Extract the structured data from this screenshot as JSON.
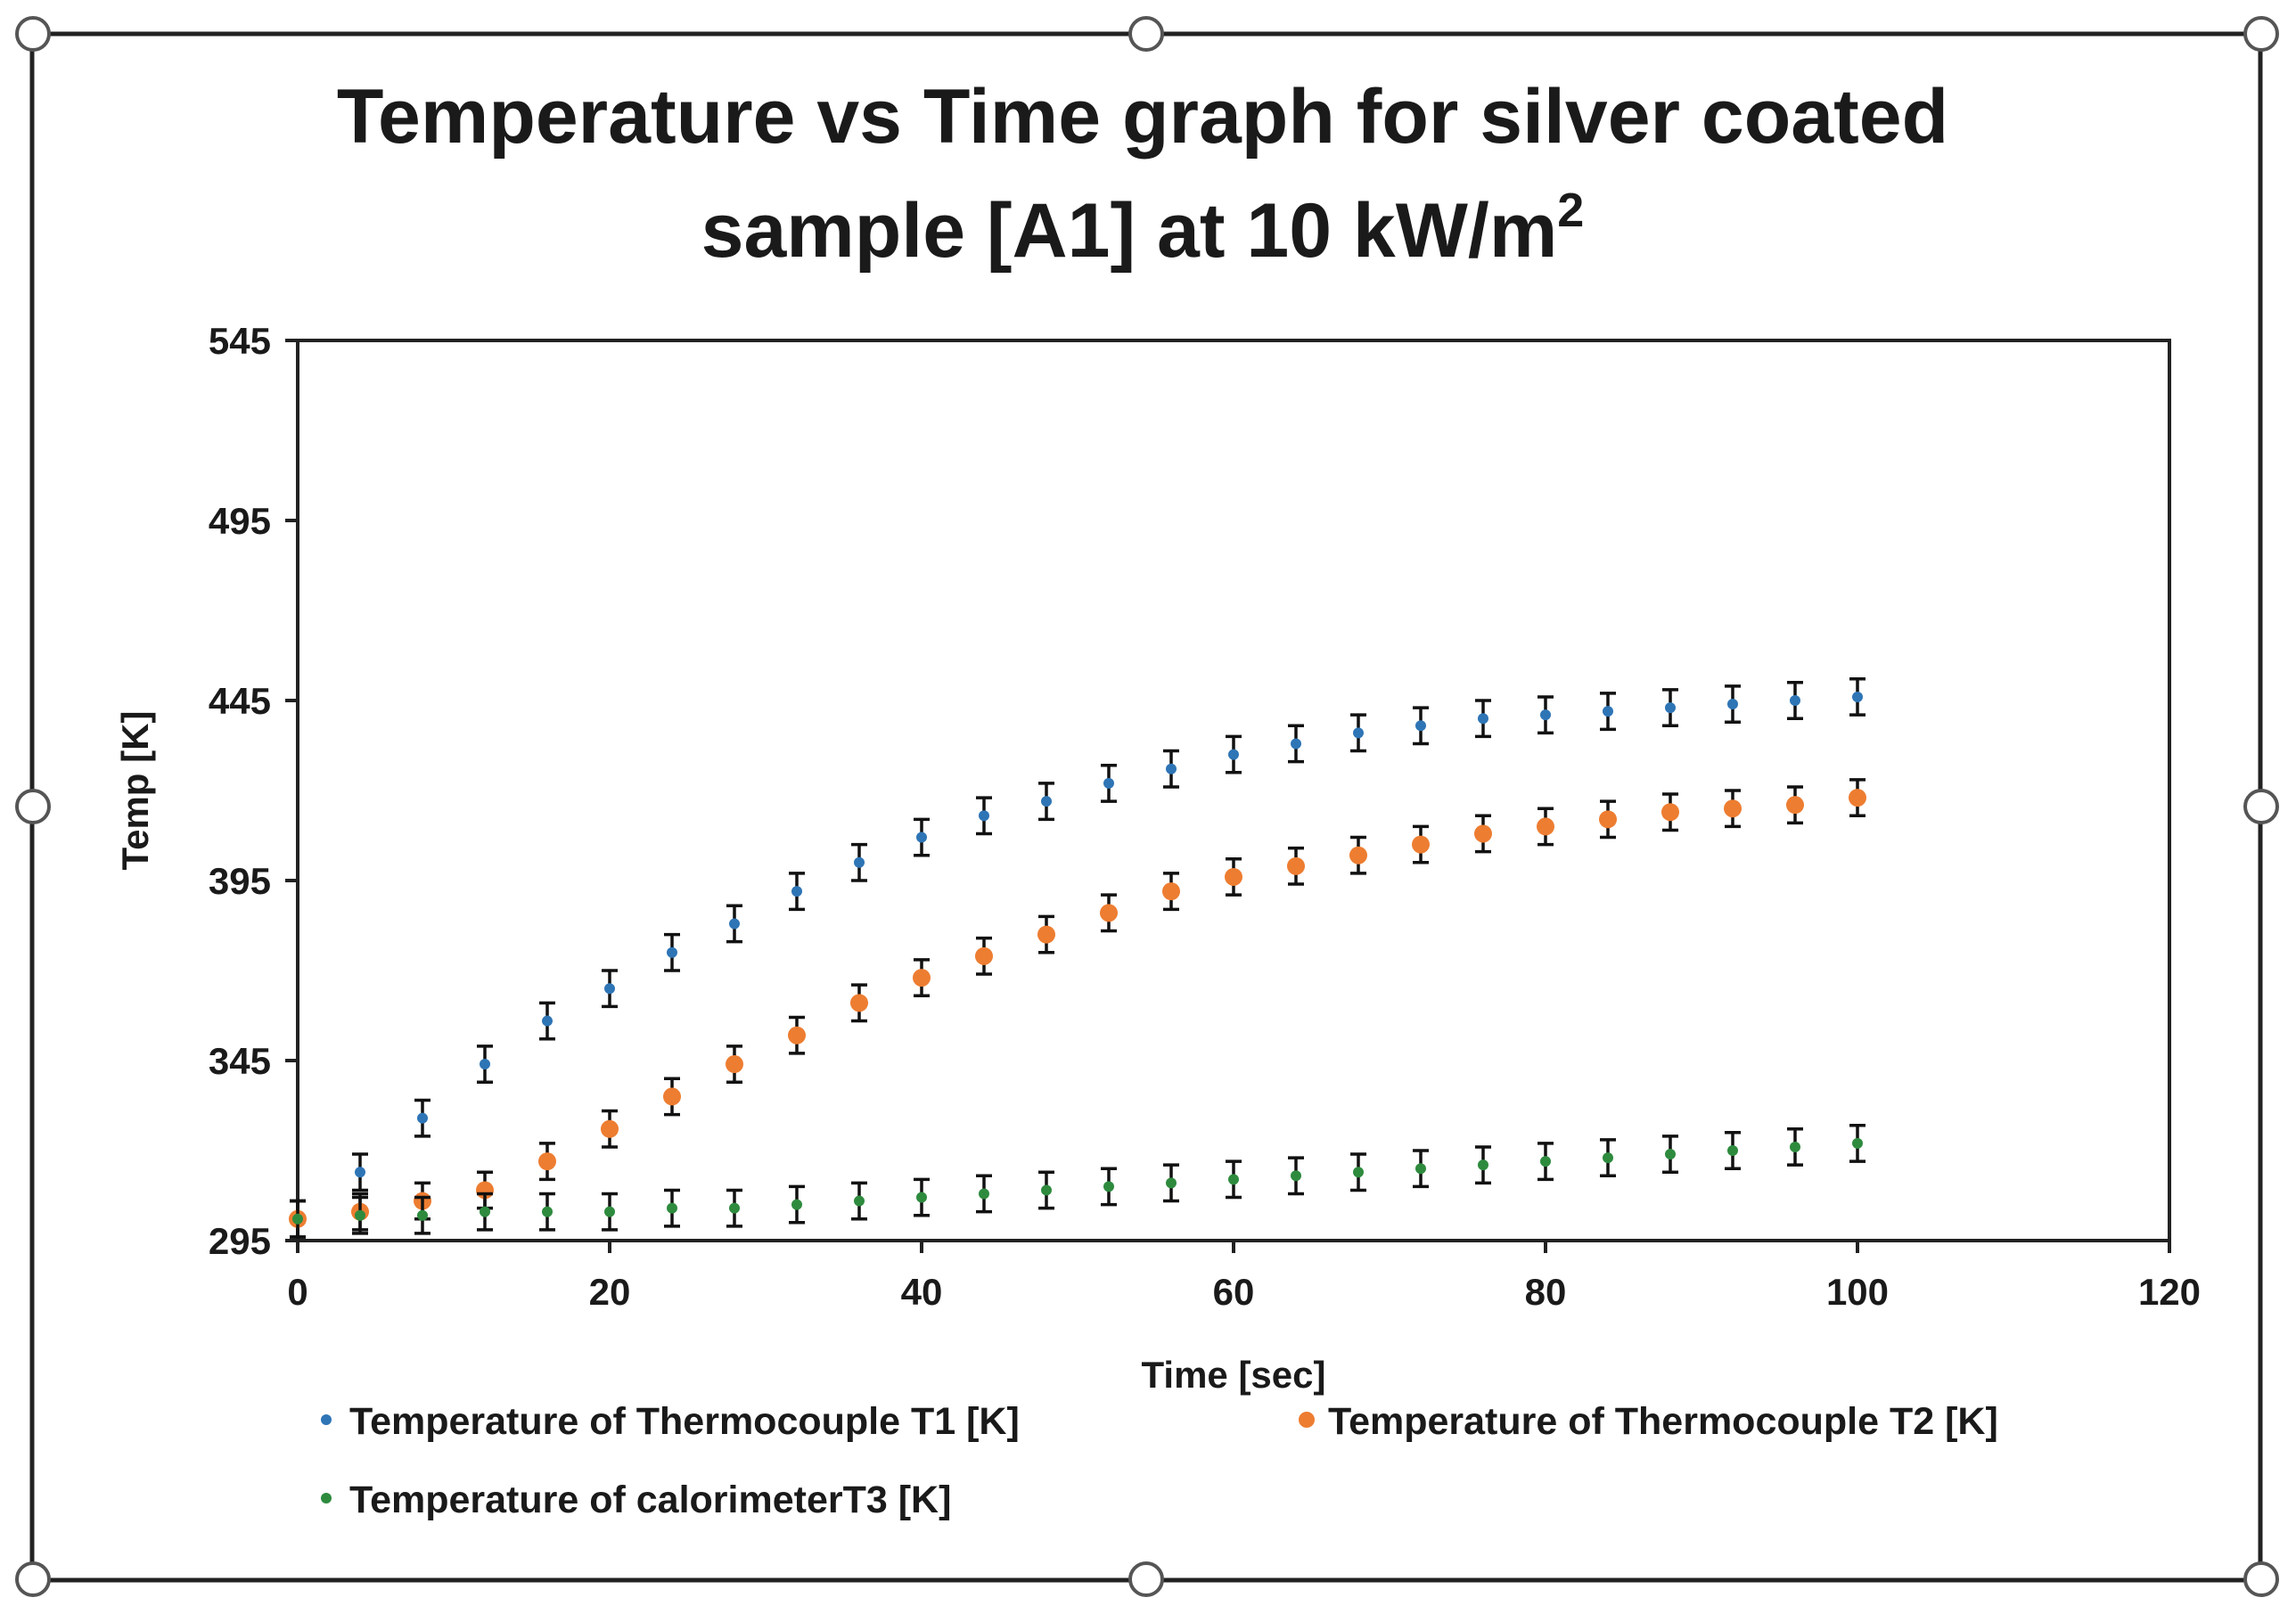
{
  "chart_data": {
    "type": "scatter",
    "title_line1": "Temperature vs Time graph for silver coated",
    "title_line2": "sample [A1] at 10 kW/m",
    "title_superscript": "2",
    "xlabel": "Time [sec]",
    "ylabel": "Temp [K]",
    "xlim": [
      0,
      120
    ],
    "ylim": [
      295,
      545
    ],
    "xticks": [
      0,
      20,
      40,
      60,
      80,
      100,
      120
    ],
    "yticks": [
      295,
      345,
      395,
      445,
      495,
      545
    ],
    "error_bar": 5,
    "legend_position": "bottom",
    "x": [
      0,
      4,
      8,
      12,
      16,
      20,
      24,
      28,
      32,
      36,
      40,
      44,
      48,
      52,
      56,
      60,
      64,
      68,
      72,
      76,
      80,
      84,
      88,
      92,
      96,
      100
    ],
    "series": [
      {
        "name": "Temperature of Thermocouple T1 [K]",
        "color": "#2e75b6",
        "marker": "small",
        "values": [
          301,
          314,
          329,
          344,
          356,
          365,
          375,
          383,
          392,
          400,
          407,
          413,
          417,
          422,
          426,
          430,
          433,
          436,
          438,
          440,
          441,
          442,
          443,
          444,
          445,
          446
        ]
      },
      {
        "name": "Temperature of Thermocouple T2 [K]",
        "color": "#ed7d31",
        "marker": "large",
        "values": [
          301,
          303,
          306,
          309,
          317,
          326,
          335,
          344,
          352,
          361,
          368,
          374,
          380,
          386,
          392,
          396,
          399,
          402,
          405,
          408,
          410,
          412,
          414,
          415,
          416,
          418
        ]
      },
      {
        "name": "Temperature of calorimeterT3 [K]",
        "color": "#2e8b3e",
        "marker": "small",
        "values": [
          301,
          302,
          302,
          303,
          303,
          303,
          304,
          304,
          305,
          306,
          307,
          308,
          309,
          310,
          311,
          312,
          313,
          314,
          315,
          316,
          317,
          318,
          319,
          320,
          321,
          322
        ]
      }
    ]
  }
}
